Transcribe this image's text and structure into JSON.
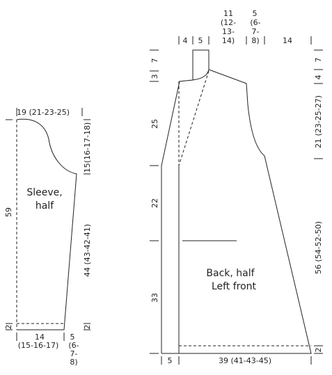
{
  "sleeve": {
    "title": [
      "Sleeve,",
      "half"
    ],
    "top_width": "19 (21-23-25)",
    "length": "59",
    "cap_height": "15(16-17-18)",
    "underarm_length": "44 (43-42-41)",
    "edge_left": "2",
    "edge_right": "2",
    "bottom_width": [
      "14",
      "(15-16-17)"
    ],
    "bottom_edge": [
      "5",
      "(6-",
      "7-",
      "8)"
    ]
  },
  "body": {
    "title": [
      "Back, half",
      "Left front"
    ],
    "top": {
      "front_shoulder": "4",
      "neck": "5",
      "back_neck": [
        "11",
        "(12-",
        "13-",
        "14)"
      ],
      "back_shoulder_a": [
        "5",
        "(6-",
        "7-",
        "8)"
      ],
      "back_shoulder_b": "14"
    },
    "left": [
      "7",
      "3",
      "25",
      "22",
      "33"
    ],
    "right": [
      "7",
      "4",
      "21 (23-25-27)",
      "56 (54-52-50)",
      "2"
    ],
    "bottom": [
      "5",
      "39 (41-43-45)"
    ]
  }
}
